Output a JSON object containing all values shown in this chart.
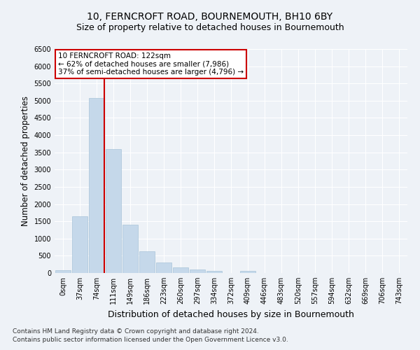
{
  "title": "10, FERNCROFT ROAD, BOURNEMOUTH, BH10 6BY",
  "subtitle": "Size of property relative to detached houses in Bournemouth",
  "xlabel": "Distribution of detached houses by size in Bournemouth",
  "ylabel": "Number of detached properties",
  "categories": [
    "0sqm",
    "37sqm",
    "74sqm",
    "111sqm",
    "149sqm",
    "186sqm",
    "223sqm",
    "260sqm",
    "297sqm",
    "334sqm",
    "372sqm",
    "409sqm",
    "446sqm",
    "483sqm",
    "520sqm",
    "557sqm",
    "594sqm",
    "632sqm",
    "669sqm",
    "706sqm",
    "743sqm"
  ],
  "values": [
    75,
    1650,
    5075,
    3600,
    1400,
    625,
    310,
    155,
    100,
    60,
    0,
    65,
    0,
    0,
    0,
    0,
    0,
    0,
    0,
    0,
    0
  ],
  "bar_color": "#c5d8ea",
  "bar_edge_color": "#a8c4d8",
  "vline_color": "#cc0000",
  "vline_x_index": 2.45,
  "annotation_text": "10 FERNCROFT ROAD: 122sqm\n← 62% of detached houses are smaller (7,986)\n37% of semi-detached houses are larger (4,796) →",
  "annotation_box_color": "#ffffff",
  "annotation_box_edge": "#cc0000",
  "footer_line1": "Contains HM Land Registry data © Crown copyright and database right 2024.",
  "footer_line2": "Contains public sector information licensed under the Open Government Licence v3.0.",
  "ylim": [
    0,
    6500
  ],
  "yticks": [
    0,
    500,
    1000,
    1500,
    2000,
    2500,
    3000,
    3500,
    4000,
    4500,
    5000,
    5500,
    6000,
    6500
  ],
  "background_color": "#eef2f7",
  "grid_color": "#ffffff",
  "title_fontsize": 10,
  "subtitle_fontsize": 9,
  "xlabel_fontsize": 9,
  "ylabel_fontsize": 8.5,
  "tick_fontsize": 7,
  "footer_fontsize": 6.5,
  "annotation_fontsize": 7.5
}
